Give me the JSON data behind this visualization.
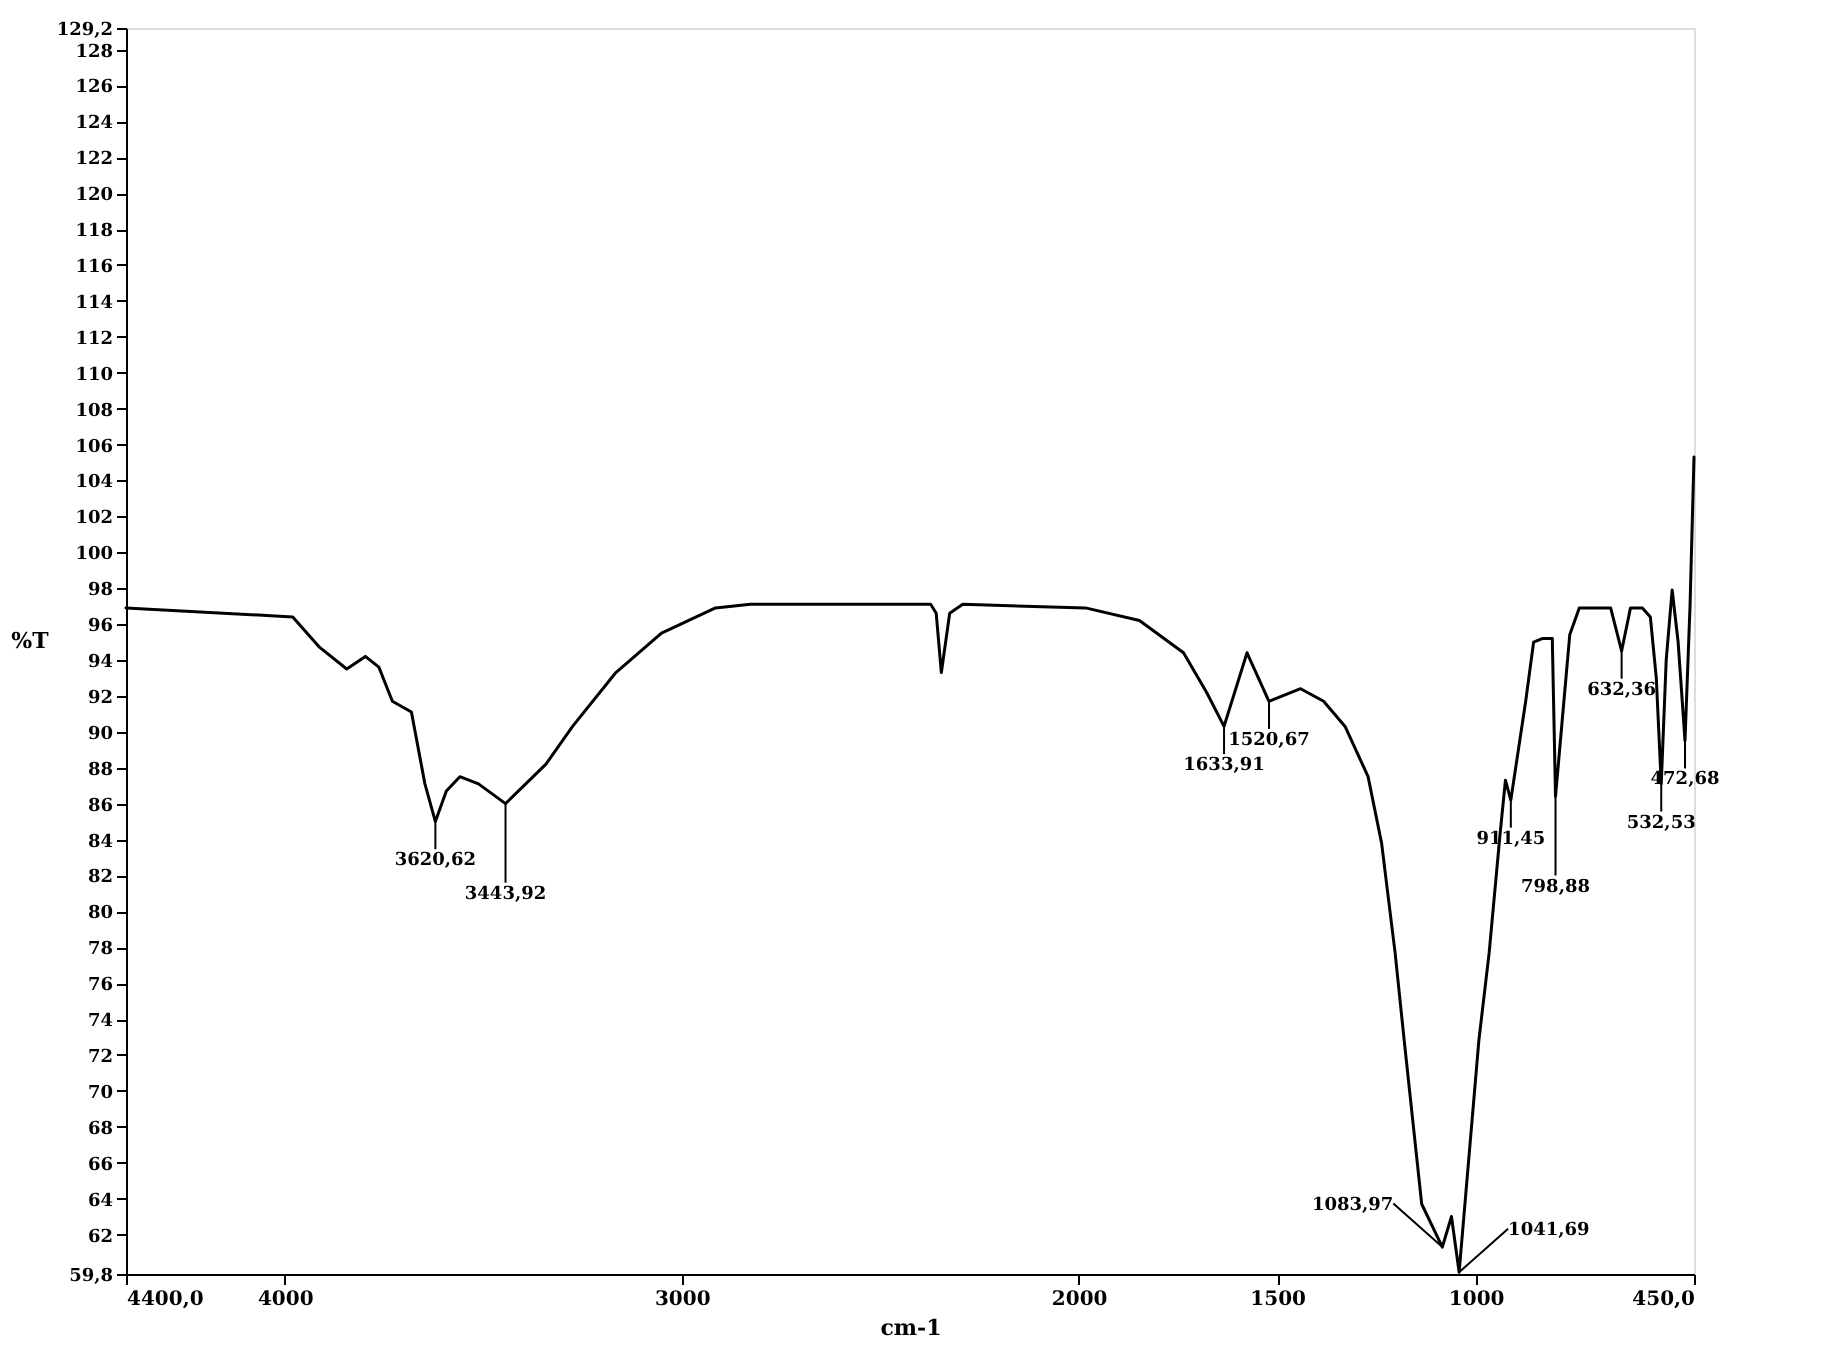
{
  "chart_data": {
    "type": "line",
    "xlabel": "cm-1",
    "ylabel": "%T",
    "xlim": [
      4400,
      450
    ],
    "ylim": [
      59.8,
      129.2
    ],
    "xticks": [
      {
        "value": 4400,
        "label": "4400,0"
      },
      4000,
      3000,
      2000,
      1500,
      1000,
      {
        "value": 450,
        "label": "450,0"
      }
    ],
    "yticks": [
      {
        "value": 59.8,
        "label": "59,8"
      },
      62,
      64,
      66,
      68,
      70,
      72,
      74,
      76,
      78,
      80,
      82,
      84,
      86,
      88,
      90,
      92,
      94,
      96,
      98,
      100,
      102,
      104,
      106,
      108,
      110,
      112,
      114,
      116,
      118,
      120,
      122,
      124,
      126,
      128,
      {
        "value": 129.2,
        "label": "129,2"
      }
    ],
    "grid": false,
    "marker": "none",
    "line_style": "solid",
    "series": [
      {
        "color": "#000000",
        "x": [
          4400,
          3980,
          3912,
          3844,
          3797,
          3763,
          3729,
          3681,
          3647,
          3620.62,
          3593,
          3559,
          3512,
          3443.92,
          3342,
          3275,
          3166,
          3051,
          2915,
          2827,
          2373,
          2359,
          2346,
          2325,
          2292,
          1983,
          1847,
          1736,
          1678,
          1633.91,
          1576,
          1520.67,
          1441,
          1383,
          1329,
          1271,
          1237,
          1203,
          1180,
          1136,
          1083.97,
          1061,
          1041.69,
          992,
          966,
          939,
          925,
          911.45,
          874,
          854,
          831,
          807,
          798.88,
          763,
          739,
          660,
          632.36,
          610,
          580,
          560,
          545,
          532.53,
          520,
          505,
          490,
          472.68,
          460,
          450
        ],
        "values": [
          96.9,
          96.4,
          94.7,
          93.5,
          94.2,
          93.6,
          91.7,
          91.1,
          87.1,
          85.0,
          86.7,
          87.5,
          87.1,
          86.0,
          88.2,
          90.3,
          93.3,
          95.5,
          96.9,
          97.1,
          97.1,
          96.6,
          93.3,
          96.6,
          97.1,
          96.9,
          96.2,
          94.4,
          92.2,
          90.3,
          94.4,
          91.7,
          92.4,
          91.7,
          90.3,
          87.5,
          83.8,
          77.7,
          72.8,
          63.7,
          61.3,
          63.0,
          59.9,
          72.8,
          77.7,
          84.2,
          87.3,
          86.2,
          91.7,
          95.0,
          95.2,
          95.2,
          86.4,
          95.4,
          96.9,
          96.9,
          94.5,
          96.9,
          96.9,
          96.4,
          93.0,
          87.1,
          94.0,
          97.9,
          95.0,
          89.5,
          97.0,
          105.3
        ]
      }
    ],
    "annotations": [
      {
        "text": "3620,62",
        "x": 3620.62,
        "y": 85.0
      },
      {
        "text": "3443,92",
        "x": 3443.92,
        "y": 86.0
      },
      {
        "text": "1633,91",
        "x": 1633.91,
        "y": 90.3
      },
      {
        "text": "1520,67",
        "x": 1520.67,
        "y": 91.7
      },
      {
        "text": "1083,97",
        "x": 1083.97,
        "y": 61.3
      },
      {
        "text": "1041,69",
        "x": 1041.69,
        "y": 59.9
      },
      {
        "text": "911,45",
        "x": 911.45,
        "y": 86.2
      },
      {
        "text": "798,88",
        "x": 798.88,
        "y": 86.4
      },
      {
        "text": "632,36",
        "x": 632.36,
        "y": 94.5
      },
      {
        "text": "532,53",
        "x": 532.53,
        "y": 87.1
      },
      {
        "text": "472,68",
        "x": 472.68,
        "y": 89.5
      }
    ]
  }
}
